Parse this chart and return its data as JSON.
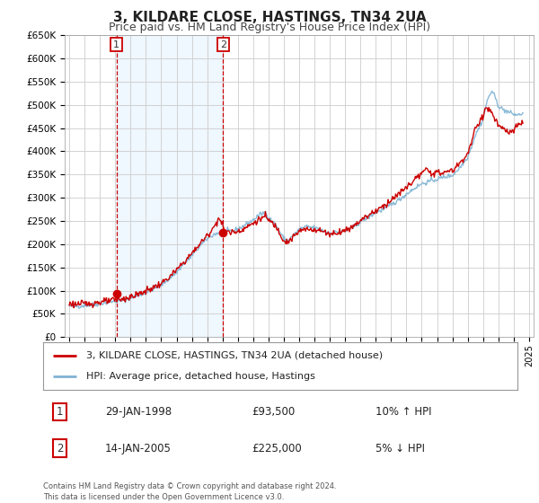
{
  "title": "3, KILDARE CLOSE, HASTINGS, TN34 2UA",
  "subtitle": "Price paid vs. HM Land Registry's House Price Index (HPI)",
  "background_color": "#ffffff",
  "plot_bg_color": "#ffffff",
  "grid_color": "#cccccc",
  "title_fontsize": 11,
  "subtitle_fontsize": 9,
  "ylim": [
    0,
    650000
  ],
  "yticks": [
    0,
    50000,
    100000,
    150000,
    200000,
    250000,
    300000,
    350000,
    400000,
    450000,
    500000,
    550000,
    600000,
    650000
  ],
  "ytick_labels": [
    "£0",
    "£50K",
    "£100K",
    "£150K",
    "£200K",
    "£250K",
    "£300K",
    "£350K",
    "£400K",
    "£450K",
    "£500K",
    "£550K",
    "£600K",
    "£650K"
  ],
  "xlim_start": 1994.7,
  "xlim_end": 2025.3,
  "xtick_years": [
    1995,
    1996,
    1997,
    1998,
    1999,
    2000,
    2001,
    2002,
    2003,
    2004,
    2005,
    2006,
    2007,
    2008,
    2009,
    2010,
    2011,
    2012,
    2013,
    2014,
    2015,
    2016,
    2017,
    2018,
    2019,
    2020,
    2021,
    2022,
    2023,
    2024,
    2025
  ],
  "line1_color": "#cc0000",
  "line2_color": "#7fb3d3",
  "line1_label": "3, KILDARE CLOSE, HASTINGS, TN34 2UA (detached house)",
  "line2_label": "HPI: Average price, detached house, Hastings",
  "sale1_x": 1998.08,
  "sale1_y": 93500,
  "sale2_x": 2005.04,
  "sale2_y": 225000,
  "vline1_x": 1998.08,
  "vline2_x": 2005.04,
  "annotation1_date": "29-JAN-1998",
  "annotation1_price": "£93,500",
  "annotation1_hpi": "10% ↑ HPI",
  "annotation2_date": "14-JAN-2005",
  "annotation2_price": "£225,000",
  "annotation2_hpi": "5% ↓ HPI",
  "footnote": "Contains HM Land Registry data © Crown copyright and database right 2024.\nThis data is licensed under the Open Government Licence v3.0.",
  "shading_color": "#ddeeff",
  "shading_alpha": 0.45
}
